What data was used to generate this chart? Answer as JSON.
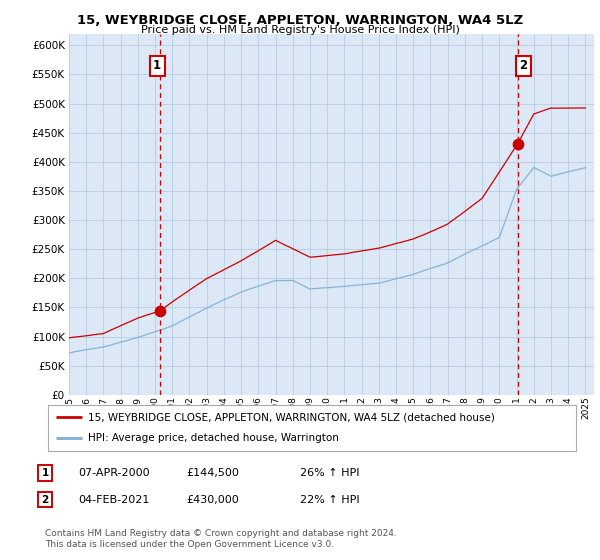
{
  "title": "15, WEYBRIDGE CLOSE, APPLETON, WARRINGTON, WA4 5LZ",
  "subtitle": "Price paid vs. HM Land Registry's House Price Index (HPI)",
  "legend_line1": "15, WEYBRIDGE CLOSE, APPLETON, WARRINGTON, WA4 5LZ (detached house)",
  "legend_line2": "HPI: Average price, detached house, Warrington",
  "sale1_date": "07-APR-2000",
  "sale1_price": "£144,500",
  "sale1_hpi": "26% ↑ HPI",
  "sale1_year": 2000.27,
  "sale1_value": 144500,
  "sale2_date": "04-FEB-2021",
  "sale2_price": "£430,000",
  "sale2_hpi": "22% ↑ HPI",
  "sale2_year": 2021.09,
  "sale2_value": 430000,
  "hpi_color": "#7bafd4",
  "price_color": "#cc0000",
  "vline_color": "#cc0000",
  "annotation_box_color": "#cc0000",
  "plot_bg_color": "#dce8f5",
  "ylim_min": 0,
  "ylim_max": 620000,
  "ytick_step": 50000,
  "copyright_text": "Contains HM Land Registry data © Crown copyright and database right 2024.\nThis data is licensed under the Open Government Licence v3.0.",
  "background_color": "#ffffff",
  "grid_color": "#b0c8e0",
  "hpi_breakpoints": [
    1995,
    1997,
    1999,
    2001,
    2003,
    2005,
    2007,
    2008,
    2009,
    2011,
    2013,
    2015,
    2017,
    2019,
    2020,
    2021,
    2022,
    2023,
    2025
  ],
  "hpi_values": [
    72000,
    82000,
    98000,
    118000,
    148000,
    175000,
    195000,
    195000,
    180000,
    185000,
    190000,
    205000,
    225000,
    255000,
    270000,
    352000,
    390000,
    375000,
    390000
  ],
  "price_breakpoints": [
    1995,
    1997,
    1999,
    2000.27,
    2001,
    2003,
    2005,
    2007,
    2008,
    2009,
    2011,
    2013,
    2015,
    2017,
    2019,
    2020,
    2021.09,
    2022,
    2023,
    2025
  ],
  "price_values": [
    98000,
    105000,
    132000,
    144500,
    160000,
    200000,
    230000,
    265000,
    250000,
    235000,
    240000,
    250000,
    265000,
    290000,
    335000,
    380000,
    430000,
    480000,
    490000,
    490000
  ],
  "noise_seed": 17,
  "noise_scale_hpi": 3200,
  "noise_scale_price": 2800
}
